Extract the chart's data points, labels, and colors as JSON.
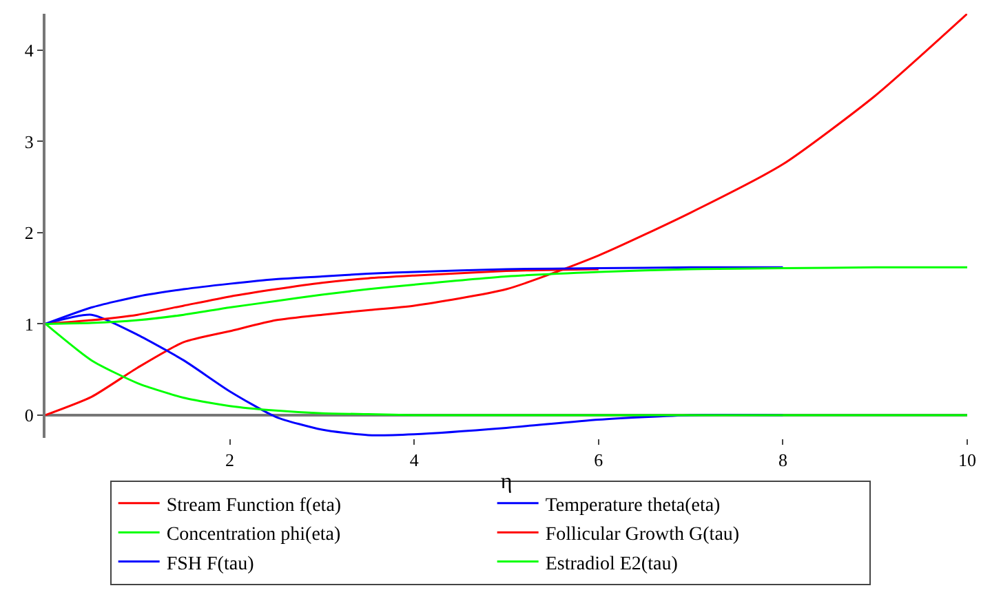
{
  "chart_data": {
    "type": "line",
    "xlabel": "η",
    "x": [
      0,
      0.5,
      1,
      1.5,
      2,
      2.5,
      3,
      3.5,
      4,
      5,
      6,
      7,
      8,
      9,
      10
    ],
    "xlim": [
      0,
      10
    ],
    "xticks": [
      2,
      4,
      6,
      8,
      10
    ],
    "ylim": [
      -0.25,
      4.4
    ],
    "yticks": [
      0,
      1,
      2,
      3,
      4
    ],
    "grid": false,
    "legend": "bottom",
    "marker": "none",
    "line_style": "solid",
    "series": [
      {
        "name": "Stream Function f(eta)",
        "color": "#ff0000",
        "values": [
          0,
          0.2,
          0.52,
          0.8,
          0.92,
          1.04,
          1.1,
          1.15,
          1.2,
          1.38,
          1.75,
          2.22,
          2.75,
          3.5,
          4.4
        ]
      },
      {
        "name": "Temperature theta(eta)",
        "color": "#0000ff",
        "values": [
          1,
          1.1,
          0.88,
          0.6,
          0.26,
          -0.02,
          -0.16,
          -0.22,
          -0.21,
          -0.14,
          -0.05,
          0,
          0,
          null,
          null
        ]
      },
      {
        "name": "Concentration phi(eta)",
        "color": "#00ff00",
        "values": [
          1,
          0.6,
          0.35,
          0.19,
          0.1,
          0.05,
          0.02,
          0.01,
          0,
          0,
          0,
          0,
          0,
          0,
          0
        ]
      },
      {
        "name": "Follicular Growth G(tau)",
        "color": "#ff0000",
        "values": [
          1,
          1.04,
          1.1,
          1.2,
          1.3,
          1.38,
          1.45,
          1.5,
          1.53,
          1.58,
          1.6,
          null,
          null,
          null,
          null
        ]
      },
      {
        "name": "FSH F(tau)",
        "color": "#0000ff",
        "values": [
          1,
          1.18,
          1.3,
          1.38,
          1.44,
          1.49,
          1.52,
          1.55,
          1.57,
          1.6,
          1.61,
          1.62,
          1.62,
          null,
          null
        ]
      },
      {
        "name": "Estradiol E2(tau)",
        "color": "#00ff00",
        "values": [
          1,
          1.01,
          1.04,
          1.1,
          1.18,
          1.25,
          1.32,
          1.38,
          1.43,
          1.52,
          1.57,
          1.6,
          1.61,
          1.62,
          1.62
        ]
      }
    ]
  }
}
